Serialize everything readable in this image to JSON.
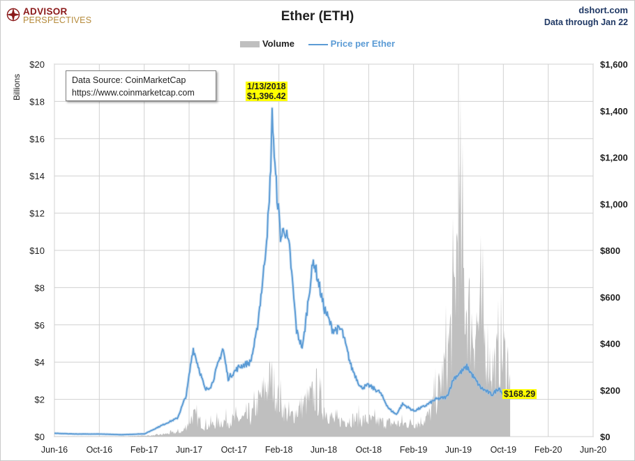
{
  "header": {
    "logo_line1": "ADVISOR",
    "logo_line2": "PERSPECTIVES",
    "title": "Ether (ETH)",
    "site": "dshort.com",
    "data_through": "Data through Jan 22"
  },
  "legend": {
    "volume_label": "Volume",
    "price_label": "Price per Ether"
  },
  "source_box": {
    "line1": "Data Source: CoinMarketCap",
    "line2": "https://www.coinmarketcap.com"
  },
  "annotations": {
    "peak_date": "1/13/2018",
    "peak_value": "$1,396.42",
    "last_value": "$168.29"
  },
  "colors": {
    "volume": "#bfbfbf",
    "price": "#5b9bd5",
    "highlight": "#ffff00",
    "site_text": "#1f3864"
  },
  "chart_data": {
    "type": "line",
    "title": "Ether (ETH)",
    "x_ticks": [
      "Jun-16",
      "Oct-16",
      "Feb-17",
      "Jun-17",
      "Oct-17",
      "Feb-18",
      "Jun-18",
      "Oct-18",
      "Feb-19",
      "Jun-19",
      "Oct-19",
      "Feb-20",
      "Jun-20"
    ],
    "y_left": {
      "label": "Billions",
      "ticks": [
        "$0",
        "$2",
        "$4",
        "$6",
        "$8",
        "$10",
        "$12",
        "$14",
        "$16",
        "$18",
        "$20"
      ],
      "lim": [
        0,
        20
      ]
    },
    "y_right": {
      "label": "",
      "ticks": [
        "$0",
        "$200",
        "$400",
        "$600",
        "$800",
        "$1,000",
        "$1,200",
        "$1,400",
        "$1,600"
      ],
      "lim": [
        0,
        1600
      ]
    },
    "grid": true,
    "legend_position": "top-center",
    "series": [
      {
        "name": "Price per Ether",
        "axis": "right",
        "x": [
          "2016-06-01",
          "2016-08-01",
          "2016-10-01",
          "2016-12-01",
          "2017-02-01",
          "2017-03-15",
          "2017-05-01",
          "2017-05-25",
          "2017-06-12",
          "2017-07-15",
          "2017-08-01",
          "2017-09-01",
          "2017-09-15",
          "2017-10-15",
          "2017-11-15",
          "2017-12-01",
          "2017-12-20",
          "2018-01-05",
          "2018-01-13",
          "2018-01-20",
          "2018-02-05",
          "2018-02-15",
          "2018-03-01",
          "2018-03-20",
          "2018-04-05",
          "2018-04-25",
          "2018-05-05",
          "2018-06-01",
          "2018-06-25",
          "2018-07-20",
          "2018-08-15",
          "2018-09-10",
          "2018-10-01",
          "2018-11-01",
          "2018-11-25",
          "2018-12-15",
          "2019-01-01",
          "2019-02-01",
          "2019-03-01",
          "2019-04-01",
          "2019-05-01",
          "2019-05-20",
          "2019-06-25",
          "2019-07-15",
          "2019-08-01",
          "2019-09-01",
          "2019-09-20",
          "2019-10-01",
          "2019-10-10",
          "2019-10-20"
        ],
        "values": [
          14,
          11,
          11,
          8,
          12,
          45,
          80,
          180,
          380,
          200,
          220,
          380,
          250,
          300,
          320,
          440,
          700,
          1000,
          1396,
          1150,
          850,
          900,
          800,
          450,
          380,
          650,
          760,
          560,
          460,
          460,
          300,
          210,
          220,
          190,
          120,
          95,
          140,
          110,
          130,
          160,
          170,
          250,
          300,
          250,
          210,
          180,
          210,
          180,
          168,
          168
        ]
      },
      {
        "name": "Volume",
        "axis": "left",
        "type": "area",
        "x": [
          "2016-06-01",
          "2016-12-01",
          "2017-03-01",
          "2017-05-15",
          "2017-06-12",
          "2017-07-15",
          "2017-09-01",
          "2017-11-15",
          "2017-12-20",
          "2018-01-10",
          "2018-02-05",
          "2018-03-01",
          "2018-05-05",
          "2018-07-01",
          "2018-09-01",
          "2018-11-20",
          "2019-01-01",
          "2019-02-15",
          "2019-03-15",
          "2019-04-10",
          "2019-05-01",
          "2019-05-20",
          "2019-06-01",
          "2019-06-20",
          "2019-07-10",
          "2019-08-01",
          "2019-09-01",
          "2019-10-01",
          "2019-10-20"
        ],
        "values": [
          0.02,
          0.02,
          0.1,
          0.4,
          1.7,
          0.8,
          1.2,
          1.5,
          3.5,
          4.6,
          2.5,
          1.5,
          3.3,
          1.2,
          1.4,
          1.1,
          1.0,
          1.1,
          1.7,
          3.7,
          6.1,
          10.0,
          17.0,
          11.0,
          8.6,
          9.0,
          5.5,
          6.5,
          5.5
        ]
      }
    ]
  }
}
